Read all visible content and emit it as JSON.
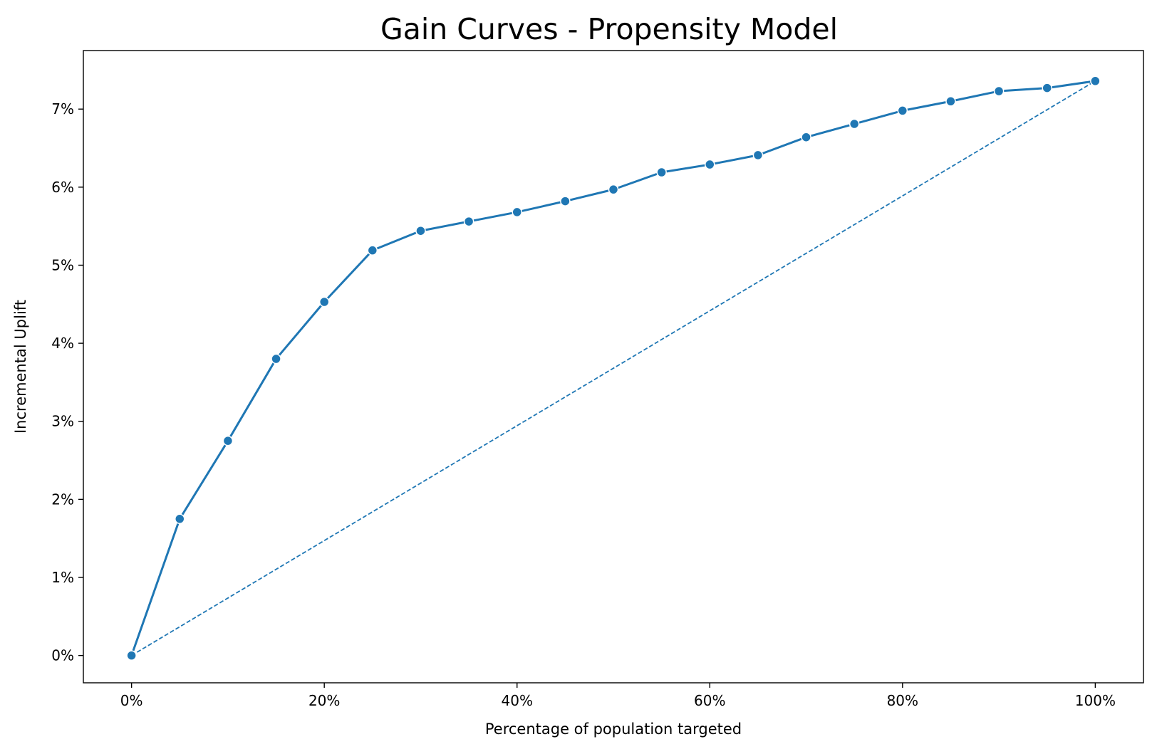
{
  "chart_data": {
    "type": "line",
    "title": "Gain Curves - Propensity Model",
    "xlabel": "Percentage of population targeted",
    "ylabel": "Incremental Uplift",
    "xlim": [
      -0.05,
      1.05
    ],
    "ylim": [
      -0.0035,
      0.0775
    ],
    "xticks": [
      {
        "value": 0.0,
        "label": "0%"
      },
      {
        "value": 0.2,
        "label": "20%"
      },
      {
        "value": 0.4,
        "label": "40%"
      },
      {
        "value": 0.6,
        "label": "60%"
      },
      {
        "value": 0.8,
        "label": "80%"
      },
      {
        "value": 1.0,
        "label": "100%"
      }
    ],
    "yticks": [
      {
        "value": 0.0,
        "label": "0%"
      },
      {
        "value": 0.01,
        "label": "1%"
      },
      {
        "value": 0.02,
        "label": "2%"
      },
      {
        "value": 0.03,
        "label": "3%"
      },
      {
        "value": 0.04,
        "label": "4%"
      },
      {
        "value": 0.05,
        "label": "5%"
      },
      {
        "value": 0.06,
        "label": "6%"
      },
      {
        "value": 0.07,
        "label": "7%"
      }
    ],
    "grid": false,
    "series": [
      {
        "style": "solid-with-markers",
        "color": "#1f77b4",
        "x": [
          0,
          0.05,
          0.1,
          0.15,
          0.2,
          0.25,
          0.3,
          0.35,
          0.4,
          0.45,
          0.5,
          0.55,
          0.6,
          0.65,
          0.7,
          0.75,
          0.8,
          0.85,
          0.9,
          0.95,
          1.0
        ],
        "y": [
          0.0,
          0.0175,
          0.0275,
          0.038,
          0.0453,
          0.0519,
          0.0544,
          0.0556,
          0.0568,
          0.0582,
          0.0597,
          0.0619,
          0.0629,
          0.0641,
          0.0664,
          0.0681,
          0.0698,
          0.071,
          0.0723,
          0.0727,
          0.0736
        ]
      },
      {
        "style": "dashed",
        "color": "#1f77b4",
        "x": [
          0,
          1.0
        ],
        "y": [
          0.0,
          0.0736
        ]
      }
    ]
  }
}
